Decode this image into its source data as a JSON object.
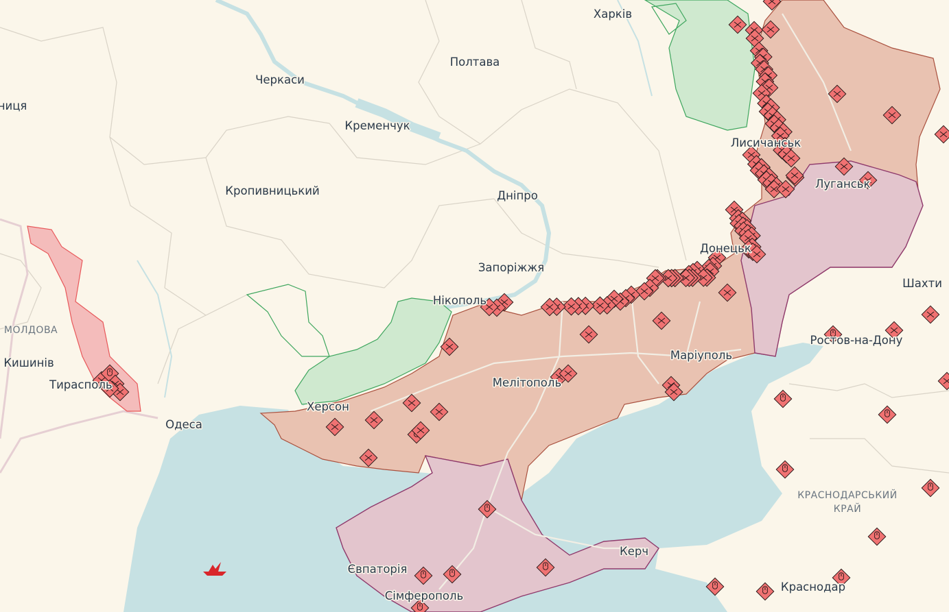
{
  "map": {
    "colors": {
      "land": "#fbf6ea",
      "sea": "#c6e1e3",
      "occupied": "#e9c2b1",
      "occupied_border": "#a9503e",
      "occupied_before_2022": "#e3c5cd",
      "occupied_before_2022_border": "#8f3a6c",
      "liberated": "#cfe9cf",
      "liberated_border": "#3ea65e",
      "transnistria": "#f4bcbb",
      "transnistria_border": "#e8585a",
      "marker": "#f07272"
    },
    "labels": {
      "kharkiv": "Харків",
      "poltava": "Полтава",
      "cherkasy": "Черкаси",
      "kremenchuk": "Кременчук",
      "kropyvnytskyi": "Кропивницький",
      "dnipro": "Дніпро",
      "zaporizhzhia": "Запоріжжя",
      "nikopol": "Нікополь",
      "kherson": "Херсон",
      "melitopol": "Мелітополь",
      "mariupol": "Маріуполь",
      "donetsk": "Донецьк",
      "luhansk": "Луганськ",
      "lysychansk": "Лисичанськ",
      "shakhty": "Шахти",
      "rostov": "Ростов-на-Дону",
      "odesa": "Одеса",
      "tiraspol": "Тирасполь",
      "chisinau": "Кишинів",
      "moldova": "МОЛДОВА",
      "vinnytsia": "Вінниця",
      "krasnodar_krai_1": "КРАСНОДАРСЬКИЙ",
      "krasnodar_krai_2": "КРАЙ",
      "kerch": "Керч",
      "yevpatoria": "Євпаторія",
      "simferopol": "Сімферополь",
      "krasnodar": "Краснодар"
    },
    "marker_types": [
      "clash-icon",
      "explosion-icon"
    ],
    "ship_icon": "warship-icon"
  }
}
